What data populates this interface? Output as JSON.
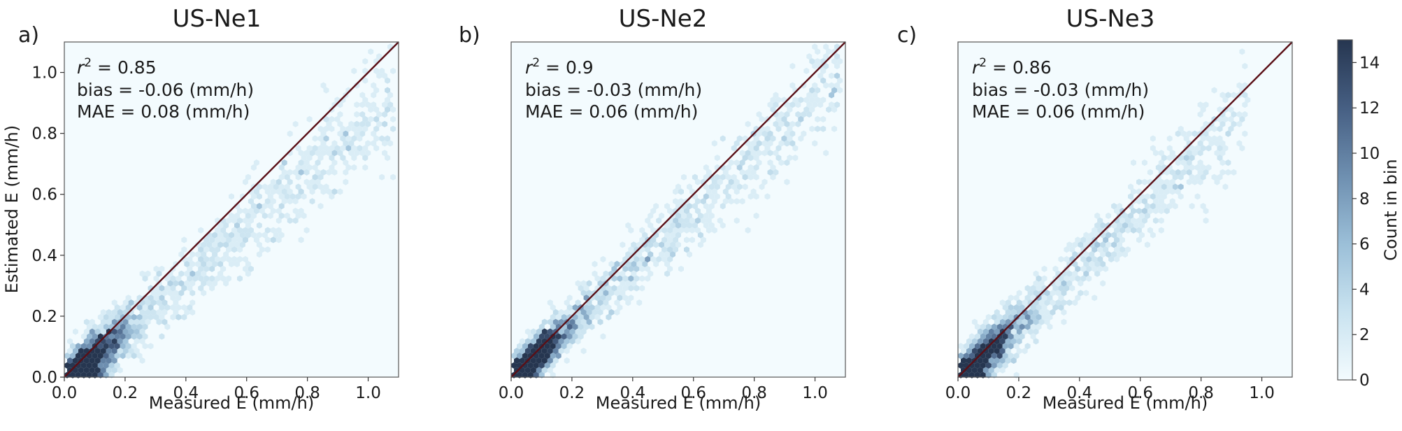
{
  "chart_data": [
    {
      "type": "hexbin",
      "panel": "a)",
      "title": "US-Ne1",
      "xlabel": "Measured E (mm/h)",
      "ylabel": "Estimated E (mm/h)",
      "xlim": [
        0.0,
        1.1
      ],
      "ylim": [
        0.0,
        1.1
      ],
      "xticks": [
        "0.0",
        "0.2",
        "0.4",
        "0.6",
        "0.8",
        "1.0"
      ],
      "yticks": [
        "0.0",
        "0.2",
        "0.4",
        "0.6",
        "0.8",
        "1.0"
      ],
      "stats": {
        "r2": "0.85",
        "bias": "bias = -0.06 (mm/h)",
        "mae": "MAE = 0.08 (mm/h)"
      },
      "reference_line": "1:1",
      "cloud": {
        "slope": 0.86,
        "offset": -0.02,
        "x_max": 1.08,
        "spread": 0.04,
        "peak_x": 0.07,
        "points": 2600
      }
    },
    {
      "type": "hexbin",
      "panel": "b)",
      "title": "US-Ne2",
      "xlabel": "Measured E (mm/h)",
      "ylabel": "",
      "xlim": [
        0.0,
        1.1
      ],
      "ylim": [
        0.0,
        1.1
      ],
      "xticks": [
        "0.0",
        "0.2",
        "0.4",
        "0.6",
        "0.8",
        "1.0"
      ],
      "yticks": [],
      "stats": {
        "r2": "0.9",
        "bias": "bias = -0.03 (mm/h)",
        "mae": "MAE = 0.06 (mm/h)"
      },
      "reference_line": "1:1",
      "cloud": {
        "slope": 0.92,
        "offset": -0.01,
        "x_max": 1.08,
        "spread": 0.03,
        "peak_x": 0.06,
        "points": 2600
      }
    },
    {
      "type": "hexbin",
      "panel": "c)",
      "title": "US-Ne3",
      "xlabel": "Measured E (mm/h)",
      "ylabel": "",
      "xlim": [
        0.0,
        1.1
      ],
      "ylim": [
        0.0,
        1.1
      ],
      "xticks": [
        "0.0",
        "0.2",
        "0.4",
        "0.6",
        "0.8",
        "1.0"
      ],
      "yticks": [],
      "stats": {
        "r2": "0.86",
        "bias": "bias = -0.03 (mm/h)",
        "mae": "MAE = 0.06 (mm/h)"
      },
      "reference_line": "1:1",
      "cloud": {
        "slope": 0.93,
        "offset": -0.01,
        "x_max": 0.95,
        "spread": 0.035,
        "peak_x": 0.08,
        "points": 2300
      }
    }
  ],
  "colorbar": {
    "label": "Count in bin",
    "min": 0,
    "max": 15,
    "ticks": [
      "0",
      "2",
      "4",
      "6",
      "8",
      "10",
      "12",
      "14"
    ],
    "colors": [
      "#f3fbfe",
      "#c9e3f0",
      "#9bbfd8",
      "#6e8fb0",
      "#465f83",
      "#263650"
    ]
  },
  "colors": {
    "identity_line": "#5a0f16",
    "background": "#f3fbfe"
  }
}
